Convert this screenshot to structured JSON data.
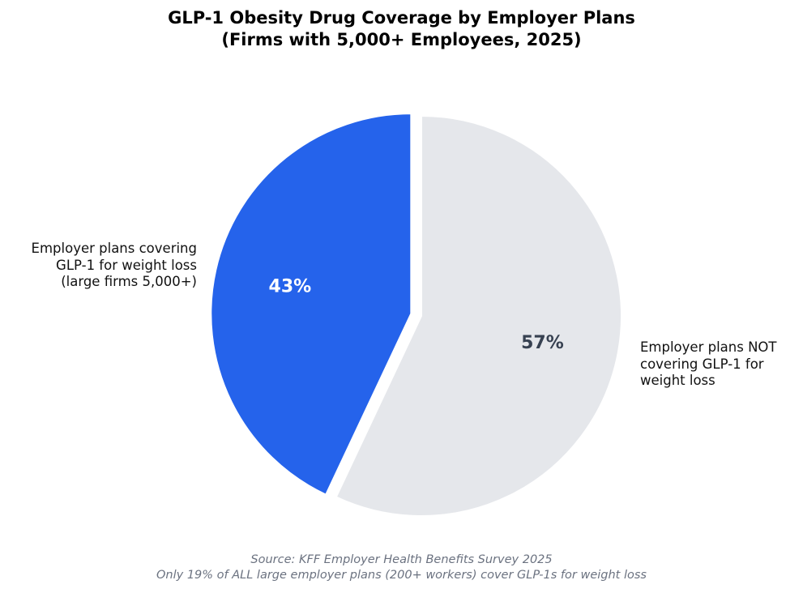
{
  "chart_data": {
    "type": "pie",
    "title": "GLP-1 Obesity Drug Coverage by Employer Plans",
    "subtitle": "(Firms with 5,000+ Employees, 2025)",
    "start_angle_deg": 90,
    "direction": "counterclockwise",
    "slices": [
      {
        "label_lines": [
          "Employer plans covering",
          "GLP-1 for weight loss",
          "(large firms 5,000+)"
        ],
        "value": 43,
        "pct_label": "43%",
        "color": "#2563eb",
        "pct_color": "#ffffff",
        "exploded": true
      },
      {
        "label_lines": [
          "Employer plans NOT",
          "covering GLP-1 for",
          "weight loss"
        ],
        "value": 57,
        "pct_label": "57%",
        "color": "#e5e7eb",
        "pct_color": "#374151",
        "exploded": false
      }
    ],
    "footnotes": [
      "Source: KFF Employer Health Benefits Survey 2025",
      "Only 19% of ALL large employer plans (200+ workers) cover GLP-1s for weight loss"
    ]
  }
}
